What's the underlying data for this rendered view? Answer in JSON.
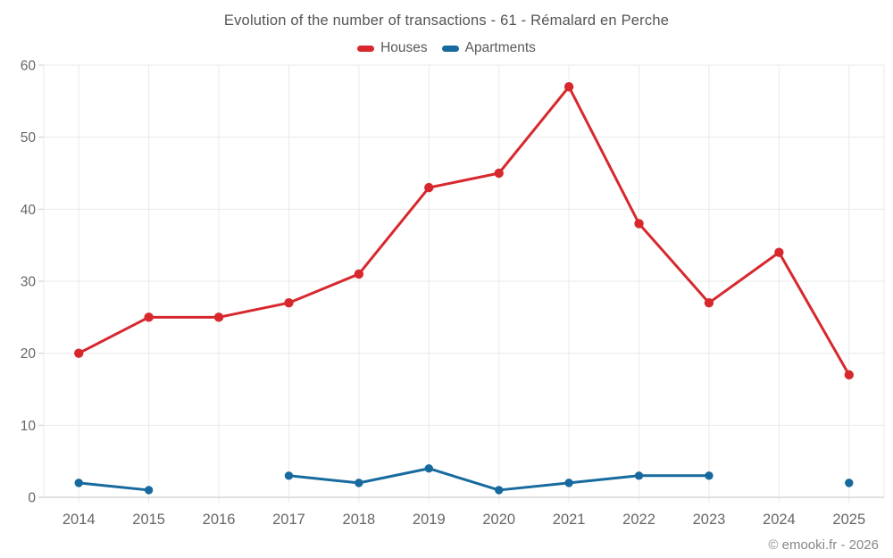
{
  "title": "Evolution of the number of transactions - 61 - Rémalard en Perche",
  "footer": {
    "credit": "© emooki.fr - 2026"
  },
  "colors": {
    "background": "#ffffff",
    "grid": "#e9e9e9",
    "axis": "#cfcfcf",
    "tick_label": "#666666",
    "title_text": "#545454",
    "footer_text": "#888888"
  },
  "chart_data": {
    "type": "line",
    "title": "Evolution of the number of transactions - 61 - Rémalard en Perche",
    "categories": [
      "2014",
      "2015",
      "2016",
      "2017",
      "2018",
      "2019",
      "2020",
      "2021",
      "2022",
      "2023",
      "2024",
      "2025"
    ],
    "series": [
      {
        "name": "Houses",
        "color": "#d7282e",
        "values": [
          20,
          25,
          25,
          27,
          31,
          43,
          45,
          57,
          38,
          27,
          34,
          17
        ]
      },
      {
        "name": "Apartments",
        "color": "#176a9e",
        "values": [
          2,
          1,
          null,
          3,
          2,
          4,
          1,
          2,
          3,
          3,
          null,
          2
        ]
      }
    ],
    "xlabel": "",
    "ylabel": "",
    "ylim": [
      0,
      60
    ],
    "yticks": [
      0,
      10,
      20,
      30,
      40,
      50,
      60
    ],
    "grid": true,
    "legend_position": "top",
    "missing_points_note": "Apartments has no data for 2016 and 2024; 2025 is an isolated point"
  }
}
